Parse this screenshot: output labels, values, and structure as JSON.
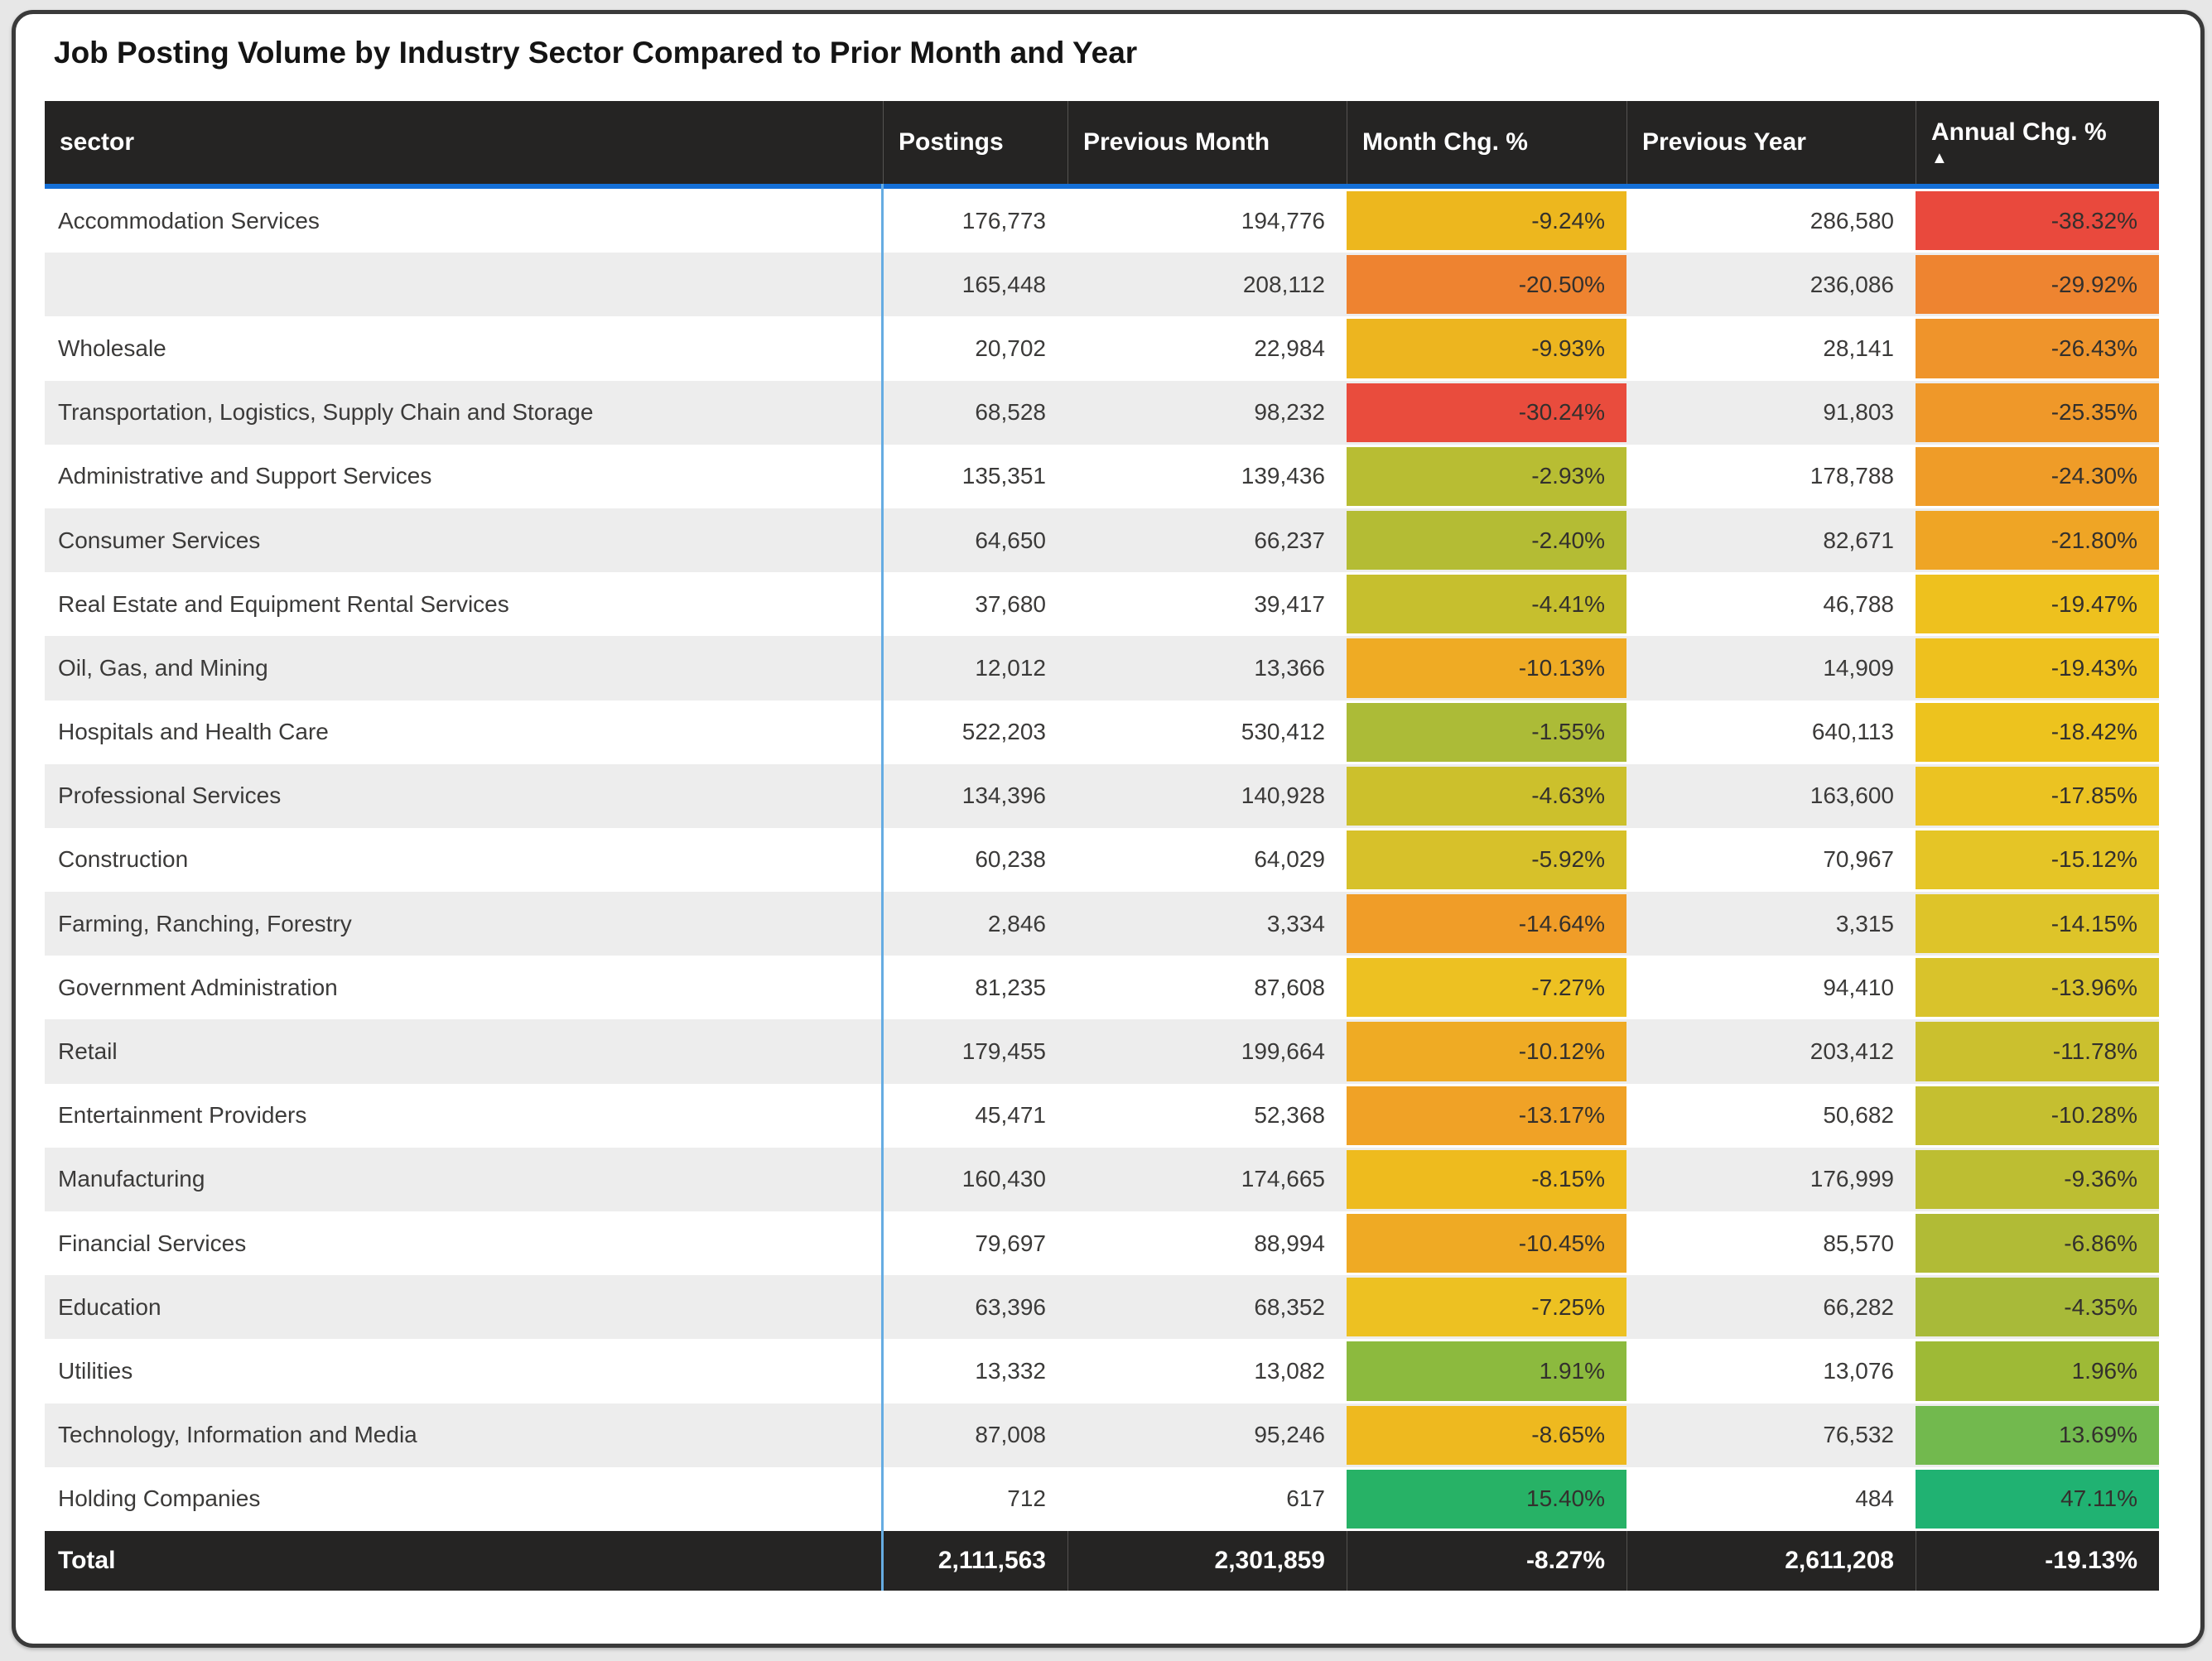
{
  "title": "Job Posting Volume by Industry Sector Compared to Prior Month and Year",
  "colors": {
    "header_bg": "#252423",
    "accent_blue": "#146FD7",
    "column_divider_blue": "#66ACE2",
    "row_alt": "#EDEDED",
    "card_border": "#3A3A3A",
    "page_background": "#E7E7E7"
  },
  "table": {
    "columns": [
      "sector",
      "Postings",
      "Previous Month",
      "Month Chg. %",
      "Previous Year",
      "Annual Chg. %"
    ],
    "sort": {
      "column": "Annual Chg. %",
      "direction": "ascending",
      "icon": "sort-ascending-triangle"
    },
    "rows": [
      {
        "sector": "Accommodation Services",
        "postings": "176,773",
        "prev_month": "194,776",
        "month_chg": "-9.24%",
        "month_color": "#EDB71E",
        "prev_year": "286,580",
        "annual_chg": "-38.32%",
        "annual_color": "#E9493D"
      },
      {
        "sector": "",
        "postings": "165,448",
        "prev_month": "208,112",
        "month_chg": "-20.50%",
        "month_color": "#EE8330",
        "prev_year": "236,086",
        "annual_chg": "-29.92%",
        "annual_color": "#EE8430"
      },
      {
        "sector": "Wholesale",
        "postings": "20,702",
        "prev_month": "22,984",
        "month_chg": "-9.93%",
        "month_color": "#EDB51F",
        "prev_year": "28,141",
        "annual_chg": "-26.43%",
        "annual_color": "#EF942B"
      },
      {
        "sector": "Transportation, Logistics, Supply Chain and Storage",
        "postings": "68,528",
        "prev_month": "98,232",
        "month_chg": "-30.24%",
        "month_color": "#E94C3D",
        "prev_year": "91,803",
        "annual_chg": "-25.35%",
        "annual_color": "#EF9829"
      },
      {
        "sector": "Administrative and Support Services",
        "postings": "135,351",
        "prev_month": "139,436",
        "month_chg": "-2.93%",
        "month_color": "#B8BD33",
        "prev_year": "178,788",
        "annual_chg": "-24.30%",
        "annual_color": "#EF9C28"
      },
      {
        "sector": "Consumer Services",
        "postings": "64,650",
        "prev_month": "66,237",
        "month_chg": "-2.40%",
        "month_color": "#B4BC34",
        "prev_year": "82,671",
        "annual_chg": "-21.80%",
        "annual_color": "#EFA525"
      },
      {
        "sector": "Real Estate and Equipment Rental Services",
        "postings": "37,680",
        "prev_month": "39,417",
        "month_chg": "-4.41%",
        "month_color": "#C6BF2E",
        "prev_year": "46,788",
        "annual_chg": "-19.47%",
        "annual_color": "#EEC11E"
      },
      {
        "sector": "Oil, Gas, and Mining",
        "postings": "12,012",
        "prev_month": "13,366",
        "month_chg": "-10.13%",
        "month_color": "#EFAB24",
        "prev_year": "14,909",
        "annual_chg": "-19.43%",
        "annual_color": "#EEC11E"
      },
      {
        "sector": "Hospitals and Health Care",
        "postings": "522,203",
        "prev_month": "530,412",
        "month_chg": "-1.55%",
        "month_color": "#ACBB37",
        "prev_year": "640,113",
        "annual_chg": "-18.42%",
        "annual_color": "#EDC31E"
      },
      {
        "sector": "Professional Services",
        "postings": "134,396",
        "prev_month": "140,928",
        "month_chg": "-4.63%",
        "month_color": "#CCC02C",
        "prev_year": "163,600",
        "annual_chg": "-17.85%",
        "annual_color": "#EBC322"
      },
      {
        "sector": "Construction",
        "postings": "60,238",
        "prev_month": "64,029",
        "month_chg": "-5.92%",
        "month_color": "#D7C12A",
        "prev_year": "70,967",
        "annual_chg": "-15.12%",
        "annual_color": "#E5C526"
      },
      {
        "sector": "Farming, Ranching, Forestry",
        "postings": "2,846",
        "prev_month": "3,334",
        "month_chg": "-14.64%",
        "month_color": "#F09D28",
        "prev_year": "3,315",
        "annual_chg": "-14.15%",
        "annual_color": "#DEC429"
      },
      {
        "sector": "Government Administration",
        "postings": "81,235",
        "prev_month": "87,608",
        "month_chg": "-7.27%",
        "month_color": "#EDC122",
        "prev_year": "94,410",
        "annual_chg": "-13.96%",
        "annual_color": "#D9C32B"
      },
      {
        "sector": "Retail",
        "postings": "179,455",
        "prev_month": "199,664",
        "month_chg": "-10.12%",
        "month_color": "#EFAB24",
        "prev_year": "203,412",
        "annual_chg": "-11.78%",
        "annual_color": "#CBC02E"
      },
      {
        "sector": "Entertainment Providers",
        "postings": "45,471",
        "prev_month": "52,368",
        "month_chg": "-13.17%",
        "month_color": "#F0A226",
        "prev_year": "50,682",
        "annual_chg": "-10.28%",
        "annual_color": "#C5BF30"
      },
      {
        "sector": "Manufacturing",
        "postings": "160,430",
        "prev_month": "174,665",
        "month_chg": "-8.15%",
        "month_color": "#EEBB1E",
        "prev_year": "176,999",
        "annual_chg": "-9.36%",
        "annual_color": "#BDBE32"
      },
      {
        "sector": "Financial Services",
        "postings": "79,697",
        "prev_month": "88,994",
        "month_chg": "-10.45%",
        "month_color": "#EFAA24",
        "prev_year": "85,570",
        "annual_chg": "-6.86%",
        "annual_color": "#B1BB36"
      },
      {
        "sector": "Education",
        "postings": "63,396",
        "prev_month": "68,352",
        "month_chg": "-7.25%",
        "month_color": "#EDC122",
        "prev_year": "66,282",
        "annual_chg": "-4.35%",
        "annual_color": "#A8BA39"
      },
      {
        "sector": "Utilities",
        "postings": "13,332",
        "prev_month": "13,082",
        "month_chg": "1.91%",
        "month_color": "#8CBA3E",
        "prev_year": "13,076",
        "annual_chg": "1.96%",
        "annual_color": "#9EBA36"
      },
      {
        "sector": "Technology, Information and Media",
        "postings": "87,008",
        "prev_month": "95,246",
        "month_chg": "-8.65%",
        "month_color": "#EEB91F",
        "prev_year": "76,532",
        "annual_chg": "13.69%",
        "annual_color": "#72B94E"
      },
      {
        "sector": "Holding Companies",
        "postings": "712",
        "prev_month": "617",
        "month_chg": "15.40%",
        "month_color": "#27B266",
        "prev_year": "484",
        "annual_chg": "47.11%",
        "annual_color": "#20B272"
      }
    ],
    "total": {
      "sector": "Total",
      "postings": "2,111,563",
      "prev_month": "2,301,859",
      "month_chg": "-8.27%",
      "prev_year": "2,611,208",
      "annual_chg": "-19.13%"
    }
  },
  "chart_data": {
    "type": "table",
    "title": "Job Posting Volume by Industry Sector Compared to Prior Month and Year",
    "columns": [
      "sector",
      "Postings",
      "Previous Month",
      "Month Chg. %",
      "Previous Year",
      "Annual Chg. %"
    ],
    "sort": {
      "column": "Annual Chg. %",
      "direction": "ascending"
    },
    "conditional_formatting": [
      "Month Chg. %",
      "Annual Chg. %"
    ],
    "rows": [
      {
        "sector": "Accommodation Services",
        "postings": 176773,
        "previous_month": 194776,
        "month_chg_pct": -9.24,
        "previous_year": 286580,
        "annual_chg_pct": -38.32
      },
      {
        "sector": "",
        "postings": 165448,
        "previous_month": 208112,
        "month_chg_pct": -20.5,
        "previous_year": 236086,
        "annual_chg_pct": -29.92
      },
      {
        "sector": "Wholesale",
        "postings": 20702,
        "previous_month": 22984,
        "month_chg_pct": -9.93,
        "previous_year": 28141,
        "annual_chg_pct": -26.43
      },
      {
        "sector": "Transportation, Logistics, Supply Chain and Storage",
        "postings": 68528,
        "previous_month": 98232,
        "month_chg_pct": -30.24,
        "previous_year": 91803,
        "annual_chg_pct": -25.35
      },
      {
        "sector": "Administrative and Support Services",
        "postings": 135351,
        "previous_month": 139436,
        "month_chg_pct": -2.93,
        "previous_year": 178788,
        "annual_chg_pct": -24.3
      },
      {
        "sector": "Consumer Services",
        "postings": 64650,
        "previous_month": 66237,
        "month_chg_pct": -2.4,
        "previous_year": 82671,
        "annual_chg_pct": -21.8
      },
      {
        "sector": "Real Estate and Equipment Rental Services",
        "postings": 37680,
        "previous_month": 39417,
        "month_chg_pct": -4.41,
        "previous_year": 46788,
        "annual_chg_pct": -19.47
      },
      {
        "sector": "Oil, Gas, and Mining",
        "postings": 12012,
        "previous_month": 13366,
        "month_chg_pct": -10.13,
        "previous_year": 14909,
        "annual_chg_pct": -19.43
      },
      {
        "sector": "Hospitals and Health Care",
        "postings": 522203,
        "previous_month": 530412,
        "month_chg_pct": -1.55,
        "previous_year": 640113,
        "annual_chg_pct": -18.42
      },
      {
        "sector": "Professional Services",
        "postings": 134396,
        "previous_month": 140928,
        "month_chg_pct": -4.63,
        "previous_year": 163600,
        "annual_chg_pct": -17.85
      },
      {
        "sector": "Construction",
        "postings": 60238,
        "previous_month": 64029,
        "month_chg_pct": -5.92,
        "previous_year": 70967,
        "annual_chg_pct": -15.12
      },
      {
        "sector": "Farming, Ranching, Forestry",
        "postings": 2846,
        "previous_month": 3334,
        "month_chg_pct": -14.64,
        "previous_year": 3315,
        "annual_chg_pct": -14.15
      },
      {
        "sector": "Government Administration",
        "postings": 81235,
        "previous_month": 87608,
        "month_chg_pct": -7.27,
        "previous_year": 94410,
        "annual_chg_pct": -13.96
      },
      {
        "sector": "Retail",
        "postings": 179455,
        "previous_month": 199664,
        "month_chg_pct": -10.12,
        "previous_year": 203412,
        "annual_chg_pct": -11.78
      },
      {
        "sector": "Entertainment Providers",
        "postings": 45471,
        "previous_month": 52368,
        "month_chg_pct": -13.17,
        "previous_year": 50682,
        "annual_chg_pct": -10.28
      },
      {
        "sector": "Manufacturing",
        "postings": 160430,
        "previous_month": 174665,
        "month_chg_pct": -8.15,
        "previous_year": 176999,
        "annual_chg_pct": -9.36
      },
      {
        "sector": "Financial Services",
        "postings": 79697,
        "previous_month": 88994,
        "month_chg_pct": -10.45,
        "previous_year": 85570,
        "annual_chg_pct": -6.86
      },
      {
        "sector": "Education",
        "postings": 63396,
        "previous_month": 68352,
        "month_chg_pct": -7.25,
        "previous_year": 66282,
        "annual_chg_pct": -4.35
      },
      {
        "sector": "Utilities",
        "postings": 13332,
        "previous_month": 13082,
        "month_chg_pct": 1.91,
        "previous_year": 13076,
        "annual_chg_pct": 1.96
      },
      {
        "sector": "Technology, Information and Media",
        "postings": 87008,
        "previous_month": 95246,
        "month_chg_pct": -8.65,
        "previous_year": 76532,
        "annual_chg_pct": 13.69
      },
      {
        "sector": "Holding Companies",
        "postings": 712,
        "previous_month": 617,
        "month_chg_pct": 15.4,
        "previous_year": 484,
        "annual_chg_pct": 47.11
      }
    ],
    "total": {
      "sector": "Total",
      "postings": 2111563,
      "previous_month": 2301859,
      "month_chg_pct": -8.27,
      "previous_year": 2611208,
      "annual_chg_pct": -19.13
    }
  }
}
